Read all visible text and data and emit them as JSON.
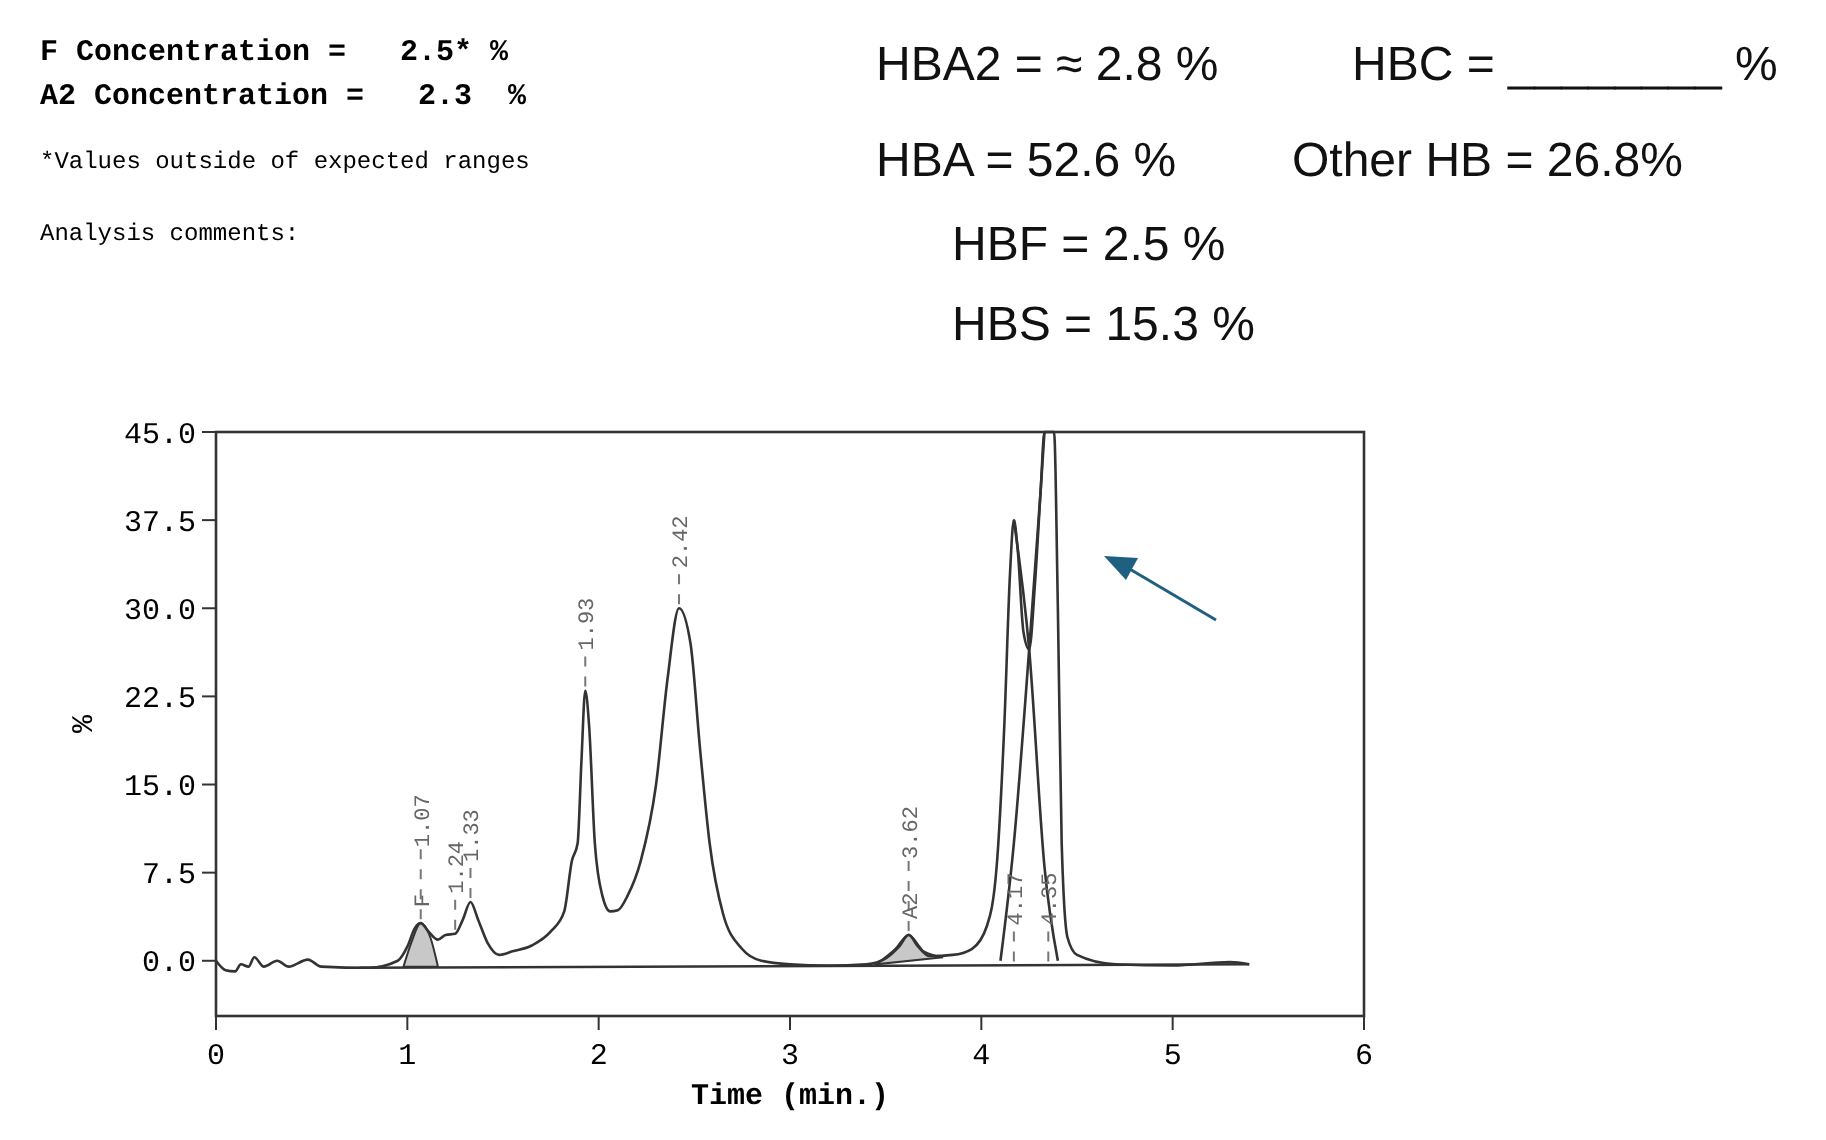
{
  "chart_data": {
    "type": "line",
    "xlabel": "Time (min.)",
    "ylabel": "%",
    "xlim": [
      0,
      6
    ],
    "ylim": [
      -4.7,
      45
    ],
    "xticks": [
      0,
      1,
      2,
      3,
      4,
      5,
      6
    ],
    "yticks": [
      {
        "value": 0,
        "label": "0.0"
      },
      {
        "value": 7.5,
        "label": "7.5"
      },
      {
        "value": 15,
        "label": "15.0"
      },
      {
        "value": 22.5,
        "label": "22.5"
      },
      {
        "value": 30,
        "label": "30.0"
      },
      {
        "value": 37.5,
        "label": "37.5"
      },
      {
        "value": 45,
        "label": "45.0"
      }
    ],
    "grid": false,
    "series": [
      {
        "type": "area",
        "color": "#c8c8c8",
        "x": [
          0.98,
          1.02,
          1.07,
          1.12,
          1.16
        ],
        "values": [
          -0.5,
          1.5,
          3.2,
          2,
          -0.5
        ]
      },
      {
        "type": "area",
        "color": "#c8c8c8",
        "x": [
          3.45,
          3.55,
          3.62,
          3.7,
          3.8
        ],
        "values": [
          -0.3,
          1,
          2.2,
          0.8,
          0.3
        ]
      },
      {
        "type": "line",
        "color": "#333333",
        "x": [
          0.75,
          5.4
        ],
        "values": [
          -0.6,
          -0.3
        ]
      },
      {
        "type": "line",
        "color": "#333333",
        "x": [
          4.1,
          4.17,
          4.25,
          4.31,
          4.33
        ],
        "values": [
          0,
          10,
          26.5,
          40,
          45
        ]
      },
      {
        "type": "line",
        "color": "#333333",
        "x": [
          4.17,
          4.25,
          4.33,
          4.4
        ],
        "values": [
          37.5,
          26.5,
          8,
          0
        ]
      },
      {
        "color": "#333333",
        "x": [
          0,
          0.05,
          0.1,
          0.13,
          0.17,
          0.2,
          0.25,
          0.32,
          0.38,
          0.48,
          0.55,
          0.8,
          0.95,
          1.0,
          1.04,
          1.07,
          1.11,
          1.16,
          1.2,
          1.25,
          1.29,
          1.33,
          1.37,
          1.42,
          1.48,
          1.55,
          1.65,
          1.75,
          1.82,
          1.86,
          1.89,
          1.91,
          1.93,
          1.95,
          1.98,
          2.02,
          2.06,
          2.1,
          2.15,
          2.22,
          2.3,
          2.36,
          2.42,
          2.48,
          2.53,
          2.58,
          2.65,
          2.75,
          2.85,
          3.0,
          3.2,
          3.4,
          3.5,
          3.57,
          3.62,
          3.67,
          3.73,
          3.85,
          3.95,
          4.03,
          4.08,
          4.12,
          4.15,
          4.17,
          4.19,
          4.22,
          4.25,
          4.28,
          4.31,
          4.33,
          4.38,
          4.4,
          4.42,
          4.45,
          4.5,
          4.7,
          5.0,
          5.3,
          5.4
        ],
        "values": [
          0,
          -0.8,
          -0.9,
          -0.3,
          -0.5,
          0.3,
          -0.5,
          0,
          -0.5,
          0.1,
          -0.5,
          -0.6,
          0,
          1.2,
          2.8,
          3.2,
          2.5,
          1.8,
          2.2,
          2.3,
          3.5,
          5,
          3.5,
          1.5,
          0.5,
          0.8,
          1.3,
          2.5,
          4.2,
          8.5,
          10,
          17,
          23,
          20,
          10,
          5.5,
          4.2,
          4.3,
          5.5,
          8.5,
          15,
          24,
          30,
          27,
          18,
          10,
          4,
          1,
          0,
          -0.3,
          -0.4,
          -0.3,
          0.2,
          1.2,
          2.2,
          1.2,
          0.4,
          0.5,
          1,
          3,
          8,
          20,
          33,
          37.5,
          35,
          28,
          26.5,
          32,
          40,
          45,
          45,
          30,
          10,
          2,
          0.5,
          -0.3,
          -0.4,
          -0.1,
          -0.3
        ]
      }
    ],
    "annotations": [
      "F Concentration =   2.5* %",
      "A2 Concentration =   2.3  %",
      "*Values outside of expected ranges",
      "Analysis comments:",
      "HBA2 = ≈ 2.8 %",
      "HBC = ________ %",
      "HBA = 52.6 %",
      "Other HB = 26.8%",
      "HBF = 2.5 %",
      "HBS = 15.3 %",
      {
        "text": "1.07",
        "x": 1.07,
        "y": 3.2
      },
      {
        "text": "F",
        "x": 1.07,
        "y": 3.2
      },
      {
        "text": "1.24",
        "x": 1.25,
        "y": 2.3
      },
      {
        "text": "1.33",
        "x": 1.33,
        "y": 5
      },
      {
        "text": "1.93",
        "x": 1.93,
        "y": 23
      },
      {
        "text": "2.42",
        "x": 2.42,
        "y": 30
      },
      {
        "text": "3.62",
        "x": 3.62,
        "y": 2.2
      },
      {
        "text": "A2",
        "x": 3.62,
        "y": 2.2
      },
      {
        "text": "4.17",
        "x": 4.17,
        "y": -0.4
      },
      {
        "text": "4.35",
        "x": 4.35,
        "y": -0.4
      }
    ]
  }
}
